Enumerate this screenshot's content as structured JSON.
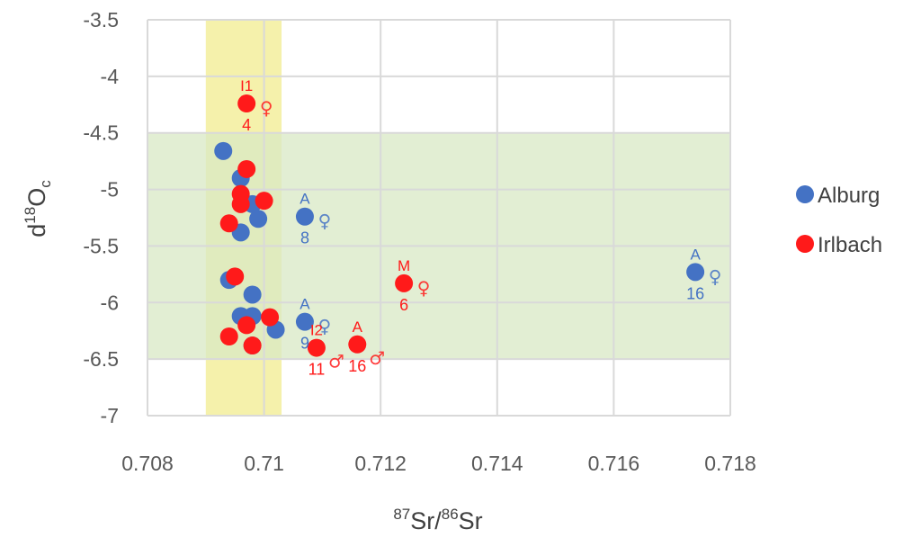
{
  "chart_data": {
    "type": "scatter",
    "xlabel": {
      "sup1": "87",
      "main1": "Sr/",
      "sup2": "86",
      "main2": "Sr"
    },
    "ylabel": {
      "main": "d",
      "sup": "18",
      "main2": "O",
      "sub": "c"
    },
    "xlim": [
      0.708,
      0.718
    ],
    "ylim": [
      -7,
      -3.5
    ],
    "xticks": [
      0.708,
      0.71,
      0.712,
      0.714,
      0.716,
      0.718
    ],
    "xtick_labels": [
      "0.708",
      "0.71",
      "0.712",
      "0.714",
      "0.716",
      "0.718"
    ],
    "yticks": [
      -3.5,
      -4,
      -4.5,
      -5,
      -5.5,
      -6,
      -6.5,
      -7
    ],
    "ytick_labels": [
      "-3.5",
      "-4",
      "-4.5",
      "-5",
      "-5.5",
      "-6",
      "-6.5",
      "-7"
    ],
    "grid": true,
    "legend_position": "right",
    "bands": [
      {
        "orientation": "vertical",
        "range": [
          0.709,
          0.7103
        ],
        "color": "#f3ef9c"
      },
      {
        "orientation": "horizontal",
        "range": [
          -6.5,
          -4.5
        ],
        "color": "#d8e8c4"
      }
    ],
    "series": [
      {
        "name": "Alburg",
        "color": "#4472c4",
        "points": [
          {
            "x": 0.7093,
            "y": -4.66
          },
          {
            "x": 0.7096,
            "y": -4.9
          },
          {
            "x": 0.7098,
            "y": -5.13
          },
          {
            "x": 0.7099,
            "y": -5.26
          },
          {
            "x": 0.7096,
            "y": -5.38
          },
          {
            "x": 0.7094,
            "y": -5.8
          },
          {
            "x": 0.7098,
            "y": -5.93
          },
          {
            "x": 0.7096,
            "y": -6.12
          },
          {
            "x": 0.7098,
            "y": -6.12
          },
          {
            "x": 0.7102,
            "y": -6.24
          },
          {
            "x": 0.7098,
            "y": -6.38
          },
          {
            "x": 0.7107,
            "y": -5.24
          },
          {
            "x": 0.7107,
            "y": -6.17
          },
          {
            "x": 0.7174,
            "y": -5.73
          }
        ]
      },
      {
        "name": "Irlbach",
        "color": "#ff1a1a",
        "points": [
          {
            "x": 0.7097,
            "y": -4.24
          },
          {
            "x": 0.7097,
            "y": -4.82
          },
          {
            "x": 0.7096,
            "y": -5.04
          },
          {
            "x": 0.7096,
            "y": -5.13
          },
          {
            "x": 0.71,
            "y": -5.1
          },
          {
            "x": 0.7094,
            "y": -5.3
          },
          {
            "x": 0.7095,
            "y": -5.77
          },
          {
            "x": 0.7101,
            "y": -6.13
          },
          {
            "x": 0.7097,
            "y": -6.2
          },
          {
            "x": 0.7094,
            "y": -6.3
          },
          {
            "x": 0.7098,
            "y": -6.38
          },
          {
            "x": 0.7109,
            "y": -6.4
          },
          {
            "x": 0.7116,
            "y": -6.37
          },
          {
            "x": 0.7124,
            "y": -5.83
          }
        ]
      }
    ],
    "annotations": [
      {
        "x": 0.7097,
        "y": -4.24,
        "top": "I1",
        "bottom": "4",
        "sex": "♀",
        "color": "#ff1a1a"
      },
      {
        "x": 0.7107,
        "y": -5.24,
        "top": "A",
        "bottom": "8",
        "sex": "♀",
        "color": "#4472c4"
      },
      {
        "x": 0.7107,
        "y": -6.17,
        "top": "A",
        "bottom": "9",
        "sex": "♀",
        "color": "#4472c4"
      },
      {
        "x": 0.7109,
        "y": -6.4,
        "top": "I2",
        "bottom": "11",
        "sex": "♂",
        "color": "#ff1a1a"
      },
      {
        "x": 0.7116,
        "y": -6.37,
        "top": "A",
        "bottom": "16",
        "sex": "♂",
        "color": "#ff1a1a"
      },
      {
        "x": 0.7124,
        "y": -5.83,
        "top": "M",
        "bottom": "6",
        "sex": "♀",
        "color": "#ff1a1a"
      },
      {
        "x": 0.7174,
        "y": -5.73,
        "top": "A",
        "bottom": "16",
        "sex": "♀",
        "color": "#4472c4"
      }
    ]
  }
}
